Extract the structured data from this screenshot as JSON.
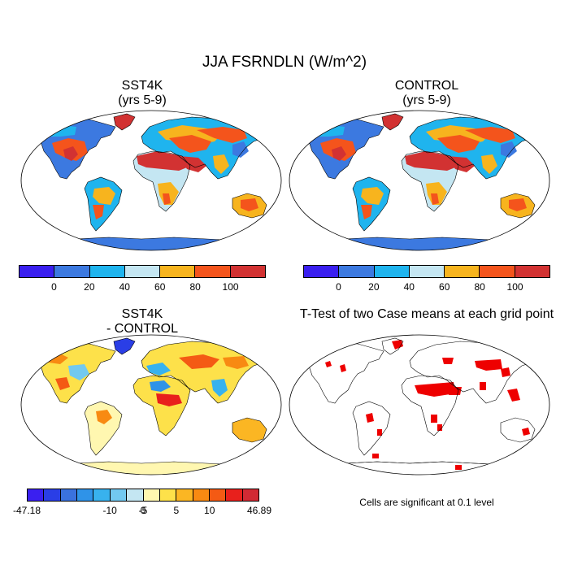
{
  "figure": {
    "title": "JJA FSRNDLN (W/m^2)"
  },
  "panels": [
    {
      "id": "sst4k",
      "title_line1": "SST4K",
      "title_line2": "(yrs 5-9)"
    },
    {
      "id": "control",
      "title_line1": "CONTROL",
      "title_line2": "(yrs 5-9)"
    },
    {
      "id": "difference",
      "title_line1": "SST4K",
      "title_line2": "- CONTROL"
    },
    {
      "id": "ttest",
      "title_line1": "T-Test of two Case means at each grid point",
      "title_line2": ""
    }
  ],
  "colorbar_top": {
    "colors": [
      "#3a1ff0",
      "#3c79e0",
      "#1fb4ee",
      "#c4e6f2",
      "#f7b41e",
      "#f4541c",
      "#d23232"
    ],
    "tick_labels": [
      "0",
      "20",
      "40",
      "60",
      "80",
      "100"
    ]
  },
  "colorbar_diff": {
    "colors": [
      "#3a1ff0",
      "#2a3ee6",
      "#3a72de",
      "#2f93e8",
      "#38b2ee",
      "#72c9f0",
      "#c4e6f2",
      "#fff7b0",
      "#fde14a",
      "#fbb623",
      "#f88a12",
      "#f45a14",
      "#e8201c",
      "#d22a34"
    ],
    "tick_labels": [
      "-47.18",
      "-10",
      "-5",
      "0",
      "5",
      "10",
      "46.89"
    ]
  },
  "ttest_note": "Cells are significant at 0.1 level",
  "colors": {
    "significant": "#ee0000",
    "antarctica_top": "#3c79e0",
    "antarctica_diff": "#fdf3a6",
    "coast": "#000000"
  }
}
